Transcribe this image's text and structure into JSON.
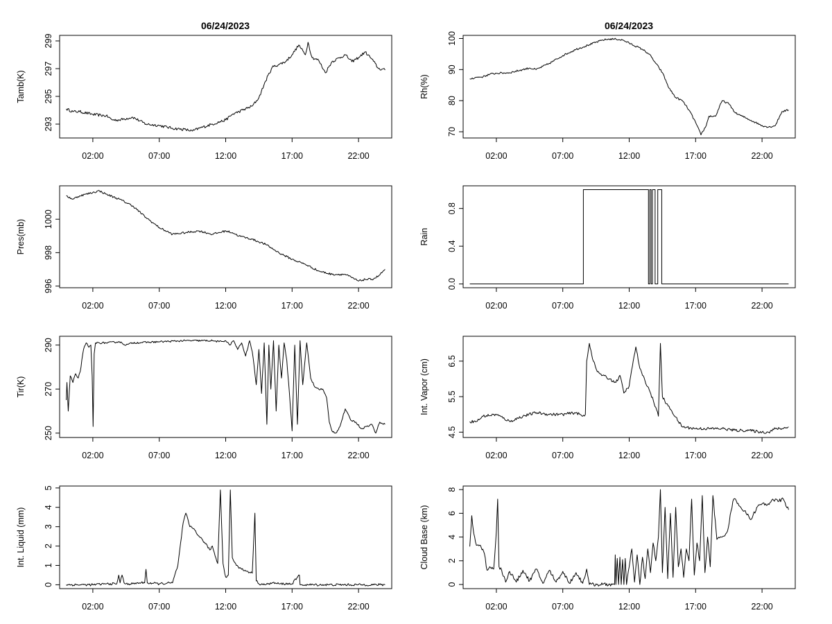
{
  "figure": {
    "left_title": "06/24/2023",
    "right_title": "06/24/2023"
  },
  "chart_data": [
    {
      "id": "tamb",
      "type": "line",
      "title": "06/24/2023",
      "ylabel": "Tamb(K)",
      "xlim": [
        -0.5,
        24.5
      ],
      "ylim": [
        292.0,
        299.4
      ],
      "x_ticks": [
        2,
        7,
        12,
        17,
        22
      ],
      "x_tick_labels": [
        "02:00",
        "07:00",
        "12:00",
        "17:00",
        "22:00"
      ],
      "y_ticks": [
        293,
        295,
        297,
        299
      ],
      "y_tick_labels": [
        "293",
        "295",
        "297",
        "299"
      ],
      "x_tick_labels_visible": true,
      "jitter": 0.1,
      "series": [
        {
          "x": [
            0,
            0.5,
            1,
            2,
            3,
            3.5,
            4,
            5,
            6,
            7,
            8,
            9,
            9.5,
            10,
            11,
            12,
            12.5,
            13,
            14,
            14.5,
            15,
            15.5,
            16,
            16.5,
            17,
            17.5,
            18,
            18.2,
            18.5,
            19,
            19.5,
            20,
            21,
            21.5,
            22,
            22.5,
            23,
            23.5,
            24
          ],
          "y": [
            294.1,
            293.9,
            293.9,
            293.7,
            293.6,
            293.3,
            293.3,
            293.5,
            293.0,
            292.9,
            292.7,
            292.6,
            292.5,
            292.7,
            293.0,
            293.3,
            293.7,
            293.9,
            294.3,
            294.9,
            296.1,
            297.1,
            297.3,
            297.5,
            298.0,
            298.7,
            298.0,
            298.9,
            297.8,
            297.6,
            296.7,
            297.5,
            298.0,
            297.5,
            297.8,
            298.2,
            297.7,
            297.0,
            296.9
          ]
        }
      ]
    },
    {
      "id": "rh",
      "type": "line",
      "title": "06/24/2023",
      "ylabel": "Rh(%)",
      "xlim": [
        -0.5,
        24.5
      ],
      "ylim": [
        68,
        101
      ],
      "x_ticks": [
        2,
        7,
        12,
        17,
        22
      ],
      "x_tick_labels": [
        "02:00",
        "07:00",
        "12:00",
        "17:00",
        "22:00"
      ],
      "y_ticks": [
        70,
        80,
        90,
        100
      ],
      "y_tick_labels": [
        "70",
        "80",
        "90",
        "100"
      ],
      "x_tick_labels_visible": true,
      "jitter": 0.3,
      "series": [
        {
          "x": [
            0,
            0.5,
            1,
            1.5,
            2,
            3,
            4,
            4.5,
            5,
            6,
            7,
            8,
            9,
            10,
            10.5,
            11,
            11.5,
            12,
            13,
            13.5,
            14,
            14.5,
            15,
            15.5,
            16,
            16.5,
            17,
            17.4,
            17.8,
            18,
            18.5,
            19,
            19.5,
            20,
            20.5,
            21,
            21.5,
            22,
            22.5,
            23,
            23.5,
            24
          ],
          "y": [
            87,
            87.5,
            87.7,
            88.5,
            88.8,
            89,
            90,
            90.5,
            90,
            92,
            94.5,
            96.5,
            98,
            99.5,
            99.8,
            99.8,
            99.5,
            98.5,
            96.5,
            95,
            92,
            89,
            84,
            81,
            80,
            77,
            73,
            69,
            72,
            75,
            75,
            80,
            79,
            76,
            75,
            74,
            73,
            72,
            71.5,
            72,
            76.5,
            77
          ]
        }
      ]
    },
    {
      "id": "pres",
      "type": "line",
      "ylabel": "Pres(mb)",
      "xlim": [
        -0.5,
        24.5
      ],
      "ylim": [
        995.9,
        1002.0
      ],
      "x_ticks": [
        2,
        7,
        12,
        17,
        22
      ],
      "x_tick_labels": [
        "02:00",
        "07:00",
        "12:00",
        "17:00",
        "22:00"
      ],
      "y_ticks": [
        996,
        998,
        1000
      ],
      "y_tick_labels": [
        "996",
        "998",
        "1000"
      ],
      "x_tick_labels_visible": true,
      "jitter": 0.06,
      "series": [
        {
          "x": [
            0,
            0.5,
            1,
            1.5,
            2,
            2.5,
            3,
            4,
            5,
            6,
            6.5,
            7,
            8,
            9,
            10,
            11,
            12,
            12.5,
            13,
            14,
            15,
            16,
            17,
            18,
            19,
            20,
            21,
            21.5,
            22,
            22.5,
            23,
            23.5,
            24
          ],
          "y": [
            1001.4,
            1001.2,
            1001.4,
            1001.5,
            1001.6,
            1001.7,
            1001.5,
            1001.2,
            1000.8,
            1000.1,
            999.8,
            999.5,
            999.1,
            999.2,
            999.3,
            999.1,
            999.3,
            999.2,
            999.0,
            998.8,
            998.5,
            998.0,
            997.6,
            997.3,
            996.9,
            996.7,
            996.7,
            996.5,
            996.3,
            996.4,
            996.4,
            996.6,
            997.0
          ]
        }
      ]
    },
    {
      "id": "rain",
      "type": "line",
      "ylabel": "Rain",
      "xlim": [
        -0.5,
        24.5
      ],
      "ylim": [
        -0.04,
        1.04
      ],
      "x_ticks": [
        2,
        7,
        12,
        17,
        22
      ],
      "x_tick_labels": [
        "02:00",
        "07:00",
        "12:00",
        "17:00",
        "22:00"
      ],
      "y_ticks": [
        0.0,
        0.4,
        0.8
      ],
      "y_tick_labels": [
        "0.0",
        "0.4",
        "0.8"
      ],
      "x_tick_labels_visible": true,
      "jitter": 0,
      "series": [
        {
          "x": [
            0,
            8.55,
            8.55,
            13.45,
            13.45,
            13.55,
            13.55,
            13.65,
            13.65,
            13.75,
            13.75,
            13.95,
            13.95,
            14.15,
            14.15,
            14.45,
            14.45,
            24
          ],
          "y": [
            0,
            0,
            1,
            1,
            0,
            0,
            1,
            1,
            0,
            0,
            1,
            1,
            0,
            0,
            1,
            1,
            0,
            0
          ]
        }
      ]
    },
    {
      "id": "tir",
      "type": "line",
      "ylabel": "Tir(K)",
      "xlim": [
        -0.5,
        24.5
      ],
      "ylim": [
        248,
        294
      ],
      "x_ticks": [
        2,
        7,
        12,
        17,
        22
      ],
      "x_tick_labels": [
        "02:00",
        "07:00",
        "12:00",
        "17:00",
        "22:00"
      ],
      "y_ticks": [
        250,
        270,
        290
      ],
      "y_tick_labels": [
        "250",
        "270",
        "290"
      ],
      "x_tick_labels_visible": true,
      "jitter": 0.4,
      "series": [
        {
          "x": [
            0,
            0.05,
            0.15,
            0.3,
            0.5,
            0.7,
            0.9,
            1.05,
            1.3,
            1.5,
            1.7,
            1.85,
            1.95,
            2.02,
            2.1,
            2.2,
            3,
            4,
            4.5,
            5,
            7,
            9,
            11,
            11.5,
            12,
            12.3,
            12.6,
            12.9,
            13.2,
            13.5,
            13.8,
            14,
            14.15,
            14.3,
            14.5,
            14.7,
            14.9,
            15.1,
            15.25,
            15.4,
            15.6,
            15.8,
            16,
            16.2,
            16.4,
            16.6,
            16.8,
            17,
            17.2,
            17.4,
            17.6,
            17.8,
            18.1,
            18.4,
            18.7,
            19,
            19.3,
            19.6,
            19.8,
            20,
            20.3,
            20.6,
            21,
            21.4,
            21.8,
            22.2,
            22.6,
            23,
            23.3,
            23.6,
            24
          ],
          "y": [
            265,
            273,
            260,
            276,
            273,
            277,
            275,
            278,
            288,
            291,
            289,
            290,
            276,
            253,
            286,
            291,
            291,
            291.5,
            290,
            291,
            291.5,
            292,
            292,
            291.5,
            292,
            290,
            292,
            288,
            291,
            285,
            292,
            287,
            280,
            272,
            288,
            268,
            291,
            254,
            290,
            270,
            292,
            260,
            290,
            275,
            291,
            283,
            268,
            251,
            290,
            254,
            292,
            272,
            291,
            275,
            271,
            270,
            270,
            266,
            255,
            251,
            250,
            253,
            261,
            256,
            255,
            252,
            253,
            254,
            250,
            255,
            254
          ]
        }
      ]
    },
    {
      "id": "vapor",
      "type": "line",
      "ylabel": "Int. Vapor (cm)",
      "xlim": [
        -0.5,
        24.5
      ],
      "ylim": [
        4.35,
        7.2
      ],
      "x_ticks": [
        2,
        7,
        12,
        17,
        22
      ],
      "x_tick_labels": [
        "02:00",
        "07:00",
        "12:00",
        "17:00",
        "22:00"
      ],
      "y_ticks": [
        4.5,
        5.5,
        6.5
      ],
      "y_tick_labels": [
        "4.5",
        "5.5",
        "6.5"
      ],
      "x_tick_labels_visible": true,
      "jitter": 0.04,
      "series": [
        {
          "x": [
            0,
            0.5,
            1,
            2,
            3,
            4,
            5,
            6,
            7,
            8,
            8.5,
            8.7,
            8.8,
            9,
            9.3,
            9.6,
            10,
            10.5,
            11,
            11.3,
            11.6,
            12,
            12.3,
            12.5,
            12.8,
            13,
            13.5,
            14,
            14.2,
            14.35,
            14.5,
            14.8,
            15.2,
            15.7,
            16,
            17,
            18,
            19,
            20,
            21,
            22,
            22.5,
            23,
            23.5,
            24
          ],
          "y": [
            4.8,
            4.8,
            4.95,
            5.0,
            4.8,
            4.95,
            5.05,
            5.0,
            5.0,
            5.05,
            4.95,
            5.0,
            6.5,
            7.0,
            6.5,
            6.2,
            6.1,
            6.0,
            5.9,
            6.1,
            5.6,
            5.8,
            6.5,
            6.9,
            6.3,
            6.1,
            5.7,
            5.2,
            4.95,
            7.0,
            5.5,
            5.3,
            5.1,
            4.8,
            4.65,
            4.6,
            4.6,
            4.6,
            4.55,
            4.55,
            4.5,
            4.5,
            4.6,
            4.6,
            4.65
          ]
        }
      ]
    },
    {
      "id": "liquid",
      "type": "line",
      "ylabel": "Int. Liquid (mm)",
      "xlim": [
        -0.5,
        24.5
      ],
      "ylim": [
        -0.2,
        5.1
      ],
      "x_ticks": [
        2,
        7,
        12,
        17,
        22
      ],
      "x_tick_labels": [
        "02:00",
        "07:00",
        "12:00",
        "17:00",
        "22:00"
      ],
      "y_ticks": [
        0,
        1,
        2,
        3,
        4,
        5
      ],
      "y_tick_labels": [
        "0",
        "1",
        "2",
        "3",
        "4",
        "5"
      ],
      "x_tick_labels_visible": true,
      "jitter": 0.06,
      "series": [
        {
          "x": [
            0,
            2,
            3,
            3.8,
            3.95,
            4.05,
            4.2,
            4.35,
            4.5,
            5,
            5.5,
            5.9,
            6.0,
            6.1,
            7,
            8,
            8.4,
            8.8,
            9.0,
            9.3,
            9.6,
            10,
            10.4,
            10.8,
            11.0,
            11.2,
            11.4,
            11.6,
            11.8,
            12.0,
            12.2,
            12.35,
            12.5,
            12.8,
            13.2,
            13.6,
            14.0,
            14.2,
            14.3,
            14.5,
            14.7,
            15,
            15.5,
            16,
            17,
            17.55,
            17.6,
            17.7,
            18,
            24
          ],
          "y": [
            0,
            0,
            0.05,
            0.05,
            0.5,
            0.1,
            0.5,
            0.1,
            0.05,
            0.05,
            0.1,
            0.1,
            0.8,
            0.1,
            0.05,
            0.1,
            1.0,
            3.2,
            3.7,
            3.0,
            2.9,
            2.5,
            2.2,
            1.8,
            2.0,
            1.5,
            1.1,
            4.9,
            1.1,
            0.4,
            0.5,
            4.9,
            1.4,
            1.0,
            0.8,
            0.7,
            0.6,
            3.7,
            0.2,
            0.05,
            0.05,
            0,
            0.1,
            0.05,
            0.05,
            0.5,
            0,
            0,
            0,
            0
          ]
        }
      ]
    },
    {
      "id": "cloudbase",
      "type": "line",
      "ylabel": "Cloud Base (km)",
      "xlim": [
        -0.5,
        24.5
      ],
      "ylim": [
        -0.35,
        8.3
      ],
      "x_ticks": [
        2,
        7,
        12,
        17,
        22
      ],
      "x_tick_labels": [
        "02:00",
        "07:00",
        "12:00",
        "17:00",
        "22:00"
      ],
      "y_ticks": [
        0,
        2,
        4,
        6,
        8
      ],
      "y_tick_labels": [
        "0",
        "2",
        "4",
        "6",
        "8"
      ],
      "x_tick_labels_visible": true,
      "jitter": 0.15,
      "series": [
        {
          "x": [
            0,
            0.15,
            0.3,
            0.5,
            0.8,
            1.1,
            1.3,
            1.5,
            1.8,
            2.0,
            2.1,
            2.2,
            2.4,
            2.7,
            3,
            3.5,
            4,
            4.5,
            5,
            5.5,
            6,
            6.5,
            7,
            7.5,
            8,
            8.5,
            8.8,
            9,
            10,
            10.9,
            10.95,
            11,
            11.1,
            11.2,
            11.3,
            11.4,
            11.5,
            11.6,
            11.7,
            11.8,
            12,
            12.2,
            12.4,
            12.6,
            12.8,
            13,
            13.2,
            13.4,
            13.6,
            13.8,
            14.0,
            14.2,
            14.35,
            14.5,
            14.7,
            14.9,
            15.1,
            15.3,
            15.5,
            15.7,
            15.9,
            16.1,
            16.3,
            16.5,
            16.7,
            16.9,
            17.1,
            17.3,
            17.5,
            17.7,
            17.9,
            18.1,
            18.3,
            18.6,
            19,
            19.4,
            19.8,
            20,
            20.4,
            20.8,
            21.2,
            21.6,
            22,
            22.4,
            22.8,
            23.2,
            23.6,
            24
          ],
          "y": [
            3.2,
            5.8,
            4.3,
            3.3,
            3.3,
            2.6,
            1.2,
            1.5,
            1.3,
            4.5,
            7.2,
            1.5,
            1.2,
            0.2,
            1.1,
            0.2,
            1.2,
            0.3,
            1.3,
            0.1,
            1.2,
            0.2,
            1.1,
            0.1,
            1.0,
            0.1,
            1.3,
            0,
            0,
            0,
            2.5,
            0,
            2.2,
            0,
            2.3,
            0,
            2.1,
            0,
            2.2,
            0,
            1.5,
            3.0,
            0.2,
            2.5,
            0,
            2.3,
            0.5,
            3.0,
            1.0,
            3.5,
            2.0,
            4.0,
            8.0,
            1.0,
            6.5,
            0.5,
            6.0,
            0.6,
            6.5,
            1.5,
            3.0,
            0.6,
            3.0,
            2.0,
            7.2,
            0.8,
            3.5,
            2.0,
            7.5,
            1.0,
            4.0,
            1.5,
            7.5,
            3.8,
            4.0,
            4.5,
            7.0,
            7.2,
            6.5,
            6.0,
            5.5,
            6.5,
            6.8,
            6.7,
            7.2,
            7.0,
            7.2,
            6.3
          ]
        }
      ]
    }
  ]
}
